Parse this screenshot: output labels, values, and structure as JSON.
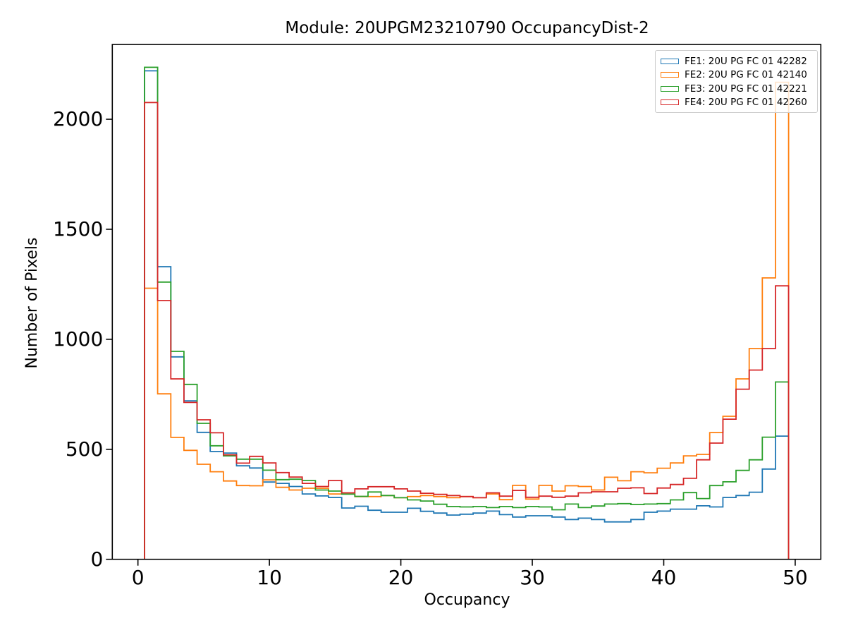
{
  "figure": {
    "title": "Module: 20UPGM23210790 OccupancyDist-2"
  },
  "chart_data": {
    "type": "histogram",
    "histtype": "step",
    "title": "Module: 20UPGM23210790 OccupancyDist-2",
    "xlabel": "Occupancy",
    "ylabel": "Number of Pixels",
    "xlim": [
      -1.95,
      51.95
    ],
    "ylim": [
      0,
      2340
    ],
    "xticks": [
      0,
      10,
      20,
      30,
      40,
      50
    ],
    "yticks": [
      0,
      500,
      1000,
      1500,
      2000
    ],
    "grid": false,
    "legend_position": "upper right",
    "bin_start": 0.5,
    "bin_width": 1,
    "bin_count": 49,
    "series": [
      {
        "name": "FE1: 20U PG FC 01 42282",
        "color": "#1f77b4",
        "values": [
          2220,
          1330,
          920,
          720,
          577,
          490,
          483,
          425,
          415,
          351,
          345,
          331,
          297,
          288,
          281,
          233,
          241,
          223,
          214,
          214,
          232,
          218,
          210,
          201,
          205,
          210,
          219,
          203,
          192,
          198,
          198,
          192,
          181,
          187,
          181,
          170,
          170,
          181,
          214,
          219,
          228,
          228,
          243,
          238,
          281,
          290,
          305,
          410,
          560
        ]
      },
      {
        "name": "FE2: 20U PG FC 01 42140",
        "color": "#ff7f0e",
        "values": [
          1232,
          752,
          554,
          495,
          432,
          398,
          356,
          335,
          334,
          361,
          327,
          315,
          323,
          323,
          297,
          297,
          285,
          285,
          290,
          280,
          285,
          290,
          285,
          280,
          285,
          280,
          297,
          271,
          336,
          274,
          336,
          310,
          334,
          331,
          315,
          373,
          357,
          398,
          393,
          414,
          438,
          470,
          477,
          576,
          650,
          820,
          958,
          1279,
          2168
        ]
      },
      {
        "name": "FE3: 20U PG FC 01 42221",
        "color": "#2ca02c",
        "values": [
          2236,
          1260,
          945,
          795,
          618,
          516,
          470,
          455,
          455,
          405,
          362,
          364,
          358,
          315,
          310,
          296,
          286,
          306,
          290,
          280,
          270,
          265,
          250,
          240,
          238,
          240,
          235,
          240,
          235,
          240,
          238,
          225,
          251,
          235,
          242,
          251,
          253,
          249,
          251,
          253,
          270,
          303,
          276,
          335,
          352,
          404,
          452,
          555,
          806
        ]
      },
      {
        "name": "FE4: 20U PG FC 01 42260",
        "color": "#d62728",
        "values": [
          2076,
          1176,
          820,
          713,
          634,
          575,
          475,
          437,
          468,
          438,
          394,
          374,
          345,
          331,
          358,
          302,
          320,
          330,
          330,
          320,
          310,
          300,
          295,
          290,
          285,
          280,
          302,
          287,
          313,
          282,
          287,
          282,
          287,
          302,
          307,
          307,
          323,
          325,
          299,
          324,
          340,
          368,
          452,
          528,
          637,
          773,
          860,
          958,
          1243
        ]
      }
    ]
  }
}
